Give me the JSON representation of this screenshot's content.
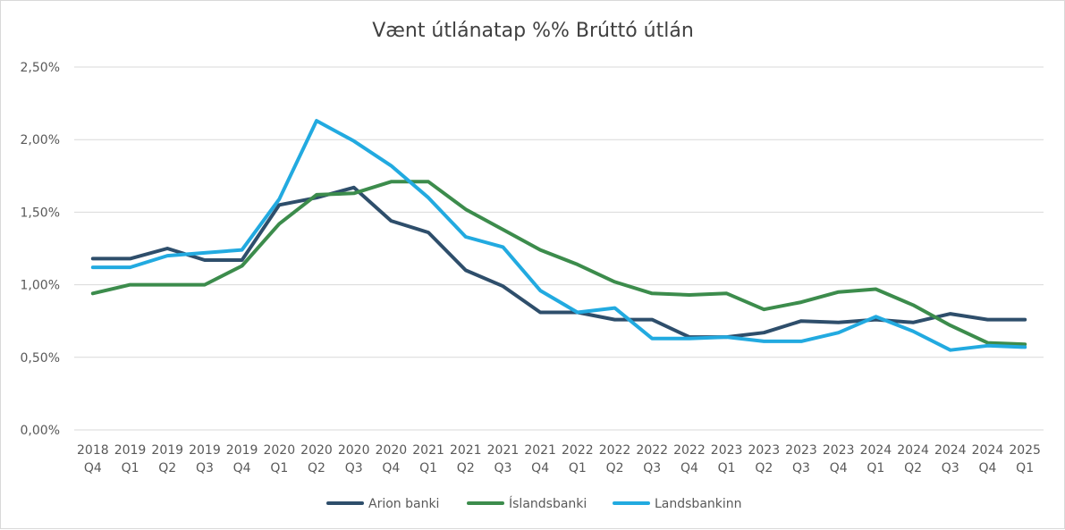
{
  "chart_data": {
    "type": "line",
    "title": "Vænt útlánatap %% Brúttó útlán",
    "xlabel": "",
    "ylabel": "",
    "ylim": [
      0,
      2.5
    ],
    "grid": true,
    "legend_position": "bottom",
    "yticks": [
      "0,00%",
      "0,50%",
      "1,00%",
      "1,50%",
      "2,00%",
      "2,50%"
    ],
    "ytick_values": [
      0,
      0.5,
      1.0,
      1.5,
      2.0,
      2.5
    ],
    "categories": [
      {
        "year": "2018",
        "q": "Q4"
      },
      {
        "year": "2019",
        "q": "Q1"
      },
      {
        "year": "2019",
        "q": "Q2"
      },
      {
        "year": "2019",
        "q": "Q3"
      },
      {
        "year": "2019",
        "q": "Q4"
      },
      {
        "year": "2020",
        "q": "Q1"
      },
      {
        "year": "2020",
        "q": "Q2"
      },
      {
        "year": "2020",
        "q": "Q3"
      },
      {
        "year": "2020",
        "q": "Q4"
      },
      {
        "year": "2021",
        "q": "Q1"
      },
      {
        "year": "2021",
        "q": "Q2"
      },
      {
        "year": "2021",
        "q": "Q3"
      },
      {
        "year": "2021",
        "q": "Q4"
      },
      {
        "year": "2022",
        "q": "Q1"
      },
      {
        "year": "2022",
        "q": "Q2"
      },
      {
        "year": "2022",
        "q": "Q3"
      },
      {
        "year": "2022",
        "q": "Q4"
      },
      {
        "year": "2023",
        "q": "Q1"
      },
      {
        "year": "2023",
        "q": "Q2"
      },
      {
        "year": "2023",
        "q": "Q3"
      },
      {
        "year": "2023",
        "q": "Q4"
      },
      {
        "year": "2024",
        "q": "Q1"
      },
      {
        "year": "2024",
        "q": "Q2"
      },
      {
        "year": "2024",
        "q": "Q3"
      },
      {
        "year": "2024",
        "q": "Q4"
      },
      {
        "year": "2025",
        "q": "Q1"
      }
    ],
    "series": [
      {
        "name": "Arion banki",
        "color": "#2e4e6b",
        "values": [
          1.18,
          1.18,
          1.25,
          1.17,
          1.17,
          1.55,
          1.6,
          1.67,
          1.44,
          1.36,
          1.1,
          0.99,
          0.81,
          0.81,
          0.76,
          0.76,
          0.64,
          0.64,
          0.67,
          0.75,
          0.74,
          0.76,
          0.74,
          0.8,
          0.76,
          0.76
        ]
      },
      {
        "name": "Íslandsbanki",
        "color": "#3c8c4c",
        "values": [
          0.94,
          1.0,
          1.0,
          1.0,
          1.13,
          1.42,
          1.62,
          1.63,
          1.71,
          1.71,
          1.52,
          1.38,
          1.24,
          1.14,
          1.02,
          0.94,
          0.93,
          0.94,
          0.83,
          0.88,
          0.95,
          0.97,
          0.86,
          0.72,
          0.6,
          0.59
        ]
      },
      {
        "name": "Landsbankinn",
        "color": "#22aae0",
        "values": [
          1.12,
          1.12,
          1.2,
          1.22,
          1.24,
          1.59,
          2.13,
          1.99,
          1.82,
          1.6,
          1.33,
          1.26,
          0.96,
          0.81,
          0.84,
          0.63,
          0.63,
          0.64,
          0.61,
          0.61,
          0.67,
          0.78,
          0.68,
          0.55,
          0.58,
          0.57
        ]
      }
    ]
  }
}
